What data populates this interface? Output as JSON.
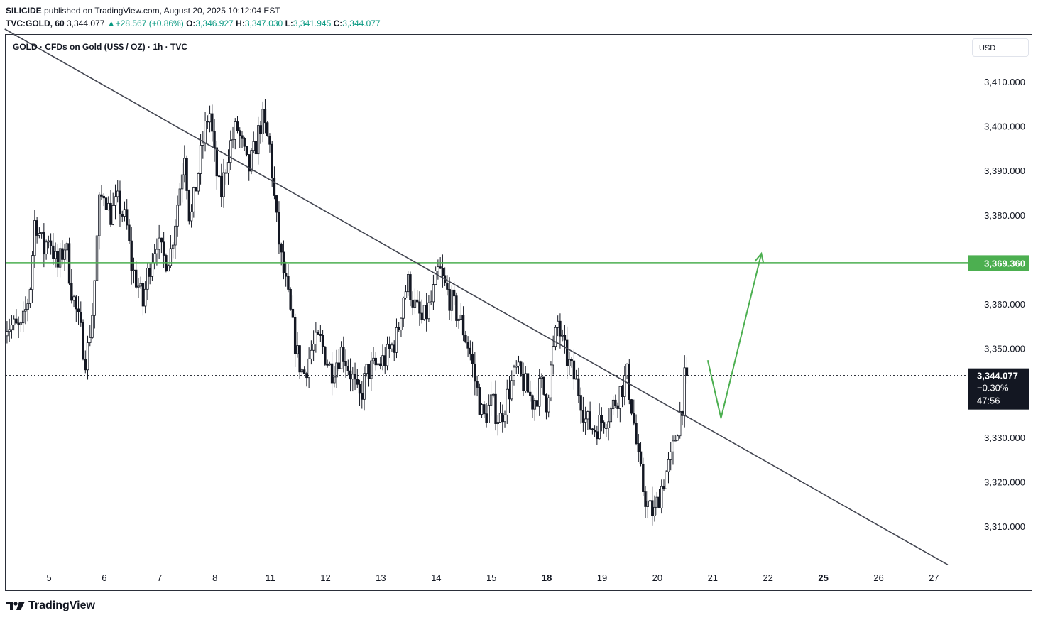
{
  "header": {
    "author": "SILICIDE",
    "published": "published on TradingView.com, August 20, 2025 10:12:04 EST",
    "ticker": "TVC:GOLD, 60",
    "last": "3,344.077",
    "change_arrow": "▲",
    "change": "+28.567 (+0.86%)",
    "o_label": "O:",
    "o_value": "3,346.927",
    "h_label": "H:",
    "h_value": "3,347.030",
    "l_label": "L:",
    "l_value": "3,341.945",
    "c_label": "C:",
    "c_value": "3,344.077"
  },
  "symbol_title": "GOLD · CFDs on Gold (US$ / OZ) · 1h · TVC",
  "currency": "USD",
  "footer": {
    "brand": "TradingView"
  },
  "colors": {
    "up": "#089981",
    "line_green": "#4caf50",
    "trend": "#434651",
    "candle": "#131722"
  },
  "chart_data": {
    "type": "candlestick",
    "title": "GOLD · CFDs on Gold (US$ / OZ) · 1h · TVC",
    "ylim": [
      3300,
      3418
    ],
    "y_ticks": [
      "3,310.000",
      "3,320.000",
      "3,330.000",
      "3,340.000",
      "3,350.000",
      "3,360.000",
      "3,370.000",
      "3,380.000",
      "3,390.000",
      "3,400.000",
      "3,410.000"
    ],
    "y_tick_values": [
      3310,
      3320,
      3330,
      3340,
      3350,
      3360,
      3370,
      3380,
      3390,
      3400,
      3410
    ],
    "x_ticks": [
      {
        "label": "5",
        "bold": false
      },
      {
        "label": "6",
        "bold": false
      },
      {
        "label": "7",
        "bold": false
      },
      {
        "label": "8",
        "bold": false
      },
      {
        "label": "11",
        "bold": true
      },
      {
        "label": "12",
        "bold": false
      },
      {
        "label": "13",
        "bold": false
      },
      {
        "label": "14",
        "bold": false
      },
      {
        "label": "15",
        "bold": false
      },
      {
        "label": "18",
        "bold": true
      },
      {
        "label": "19",
        "bold": false
      },
      {
        "label": "20",
        "bold": false
      },
      {
        "label": "21",
        "bold": false
      },
      {
        "label": "22",
        "bold": false
      },
      {
        "label": "25",
        "bold": true
      },
      {
        "label": "26",
        "bold": false
      },
      {
        "label": "27",
        "bold": false
      }
    ],
    "x_tick_index": [
      0,
      1,
      2,
      3,
      4,
      5,
      6,
      7,
      8,
      9,
      10,
      11,
      12,
      13,
      14,
      15,
      16
    ],
    "horizontal_level": {
      "value": 3369.36,
      "label": "3,369.360"
    },
    "last_price": {
      "value": 3344.077,
      "label": "3,344.077",
      "change_pct": "−0.30%",
      "countdown": "47:56"
    },
    "trendline": {
      "start": [
        -0.8,
        3422
      ],
      "end": [
        16.25,
        3301.5
      ]
    },
    "projection_path": [
      [
        11.91,
        3347.5
      ],
      [
        12.15,
        3334.5
      ],
      [
        12.88,
        3371.5
      ]
    ],
    "key_points": [
      [
        -0.8,
        3356
      ],
      [
        -0.5,
        3354
      ],
      [
        -0.35,
        3363
      ],
      [
        -0.25,
        3380
      ],
      [
        -0.1,
        3372
      ],
      [
        0,
        3376
      ],
      [
        0.15,
        3368
      ],
      [
        0.3,
        3374
      ],
      [
        0.4,
        3364
      ],
      [
        0.5,
        3358
      ],
      [
        0.6,
        3352
      ],
      [
        0.65,
        3348
      ],
      [
        0.7,
        3350
      ],
      [
        0.8,
        3360
      ],
      [
        0.9,
        3382
      ],
      [
        1,
        3386
      ],
      [
        1.1,
        3380
      ],
      [
        1.25,
        3383
      ],
      [
        1.4,
        3378
      ],
      [
        1.5,
        3368
      ],
      [
        1.6,
        3365
      ],
      [
        1.7,
        3360
      ],
      [
        1.8,
        3368
      ],
      [
        1.95,
        3375
      ],
      [
        2,
        3372
      ],
      [
        2.1,
        3370
      ],
      [
        2.2,
        3372
      ],
      [
        2.35,
        3385
      ],
      [
        2.45,
        3395
      ],
      [
        2.55,
        3378
      ],
      [
        2.65,
        3386
      ],
      [
        2.8,
        3398
      ],
      [
        2.9,
        3404
      ],
      [
        3,
        3392
      ],
      [
        3.1,
        3384
      ],
      [
        3.25,
        3395
      ],
      [
        3.4,
        3400
      ],
      [
        3.6,
        3390
      ],
      [
        3.7,
        3394
      ],
      [
        3.85,
        3402
      ],
      [
        4,
        3395
      ],
      [
        4.1,
        3380
      ],
      [
        4.2,
        3370
      ],
      [
        4.3,
        3363
      ],
      [
        4.4,
        3355
      ],
      [
        4.5,
        3348
      ],
      [
        4.6,
        3344
      ],
      [
        4.75,
        3350
      ],
      [
        4.9,
        3352
      ],
      [
        5.1,
        3345
      ],
      [
        5.3,
        3350
      ],
      [
        5.5,
        3343
      ],
      [
        5.6,
        3338
      ],
      [
        5.75,
        3345
      ],
      [
        5.9,
        3346
      ],
      [
        6.1,
        3348
      ],
      [
        6.3,
        3353
      ],
      [
        6.4,
        3362
      ],
      [
        6.5,
        3365
      ],
      [
        6.6,
        3360
      ],
      [
        6.75,
        3356
      ],
      [
        6.9,
        3360
      ],
      [
        7.05,
        3368
      ],
      [
        7.15,
        3364
      ],
      [
        7.3,
        3360
      ],
      [
        7.45,
        3356
      ],
      [
        7.6,
        3350
      ],
      [
        7.7,
        3343
      ],
      [
        7.85,
        3334
      ],
      [
        8,
        3338
      ],
      [
        8.15,
        3334
      ],
      [
        8.3,
        3340
      ],
      [
        8.45,
        3345
      ],
      [
        8.6,
        3342
      ],
      [
        8.75,
        3338
      ],
      [
        8.9,
        3342
      ],
      [
        9,
        3338
      ],
      [
        9.1,
        3348
      ],
      [
        9.2,
        3356
      ],
      [
        9.3,
        3350
      ],
      [
        9.45,
        3345
      ],
      [
        9.6,
        3340
      ],
      [
        9.7,
        3334
      ],
      [
        9.85,
        3332
      ],
      [
        10,
        3334
      ],
      [
        10.15,
        3336
      ],
      [
        10.3,
        3340
      ],
      [
        10.45,
        3344
      ],
      [
        10.55,
        3336
      ],
      [
        10.65,
        3325
      ],
      [
        10.75,
        3318
      ],
      [
        10.85,
        3314
      ],
      [
        10.95,
        3313
      ],
      [
        11.05,
        3318
      ],
      [
        11.15,
        3322
      ],
      [
        11.25,
        3325
      ],
      [
        11.35,
        3332
      ],
      [
        11.45,
        3338
      ],
      [
        11.5,
        3344
      ],
      [
        11.55,
        3344
      ]
    ]
  }
}
